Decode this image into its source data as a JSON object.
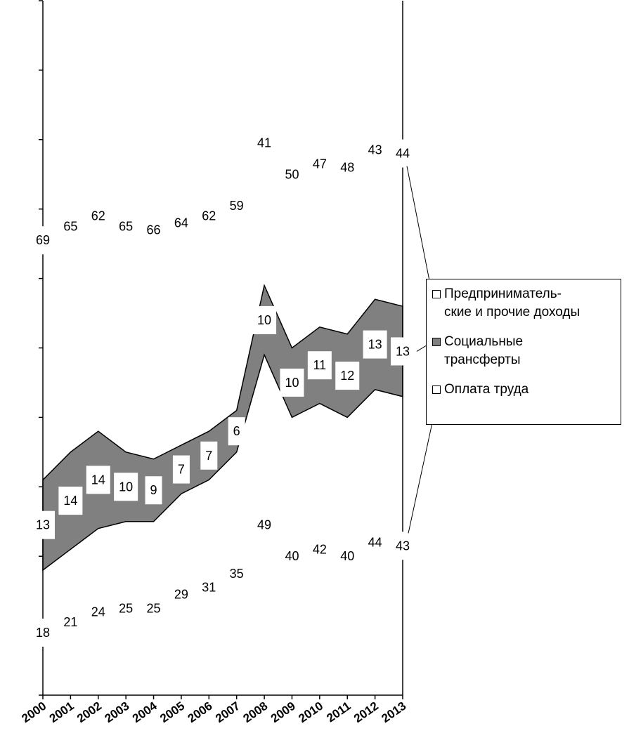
{
  "chart_data": {
    "type": "area",
    "stacked": true,
    "percent": true,
    "categories": [
      "2000",
      "2001",
      "2002",
      "2003",
      "2004",
      "2005",
      "2006",
      "2007",
      "2008",
      "2009",
      "2010",
      "2011",
      "2012",
      "2013"
    ],
    "series": [
      {
        "name": "Оплата труда",
        "values": [
          18,
          21,
          24,
          25,
          25,
          29,
          31,
          35,
          49,
          40,
          42,
          40,
          44,
          43
        ],
        "color": "#ffffff"
      },
      {
        "name": "Социальные трансферты",
        "values": [
          13,
          14,
          14,
          10,
          9,
          7,
          7,
          6,
          10,
          10,
          11,
          12,
          13,
          13
        ],
        "color": "#808080"
      },
      {
        "name": "Предприниматель- ские и прочие доходы",
        "values": [
          69,
          65,
          62,
          65,
          66,
          64,
          62,
          59,
          41,
          50,
          47,
          48,
          43,
          44
        ],
        "color": "#ffffff"
      }
    ],
    "ylim": [
      0,
      100
    ],
    "title": "",
    "xlabel": "",
    "ylabel": "",
    "grid": false,
    "legend_position": "right"
  },
  "legend": {
    "items": [
      {
        "label": "Предприниматель-\nские и прочие доходы",
        "swatch": "#ffffff"
      },
      {
        "label": "Социальные\nтрансферты",
        "swatch": "#808080"
      },
      {
        "label": "Оплата труда",
        "swatch": "#ffffff"
      }
    ]
  }
}
